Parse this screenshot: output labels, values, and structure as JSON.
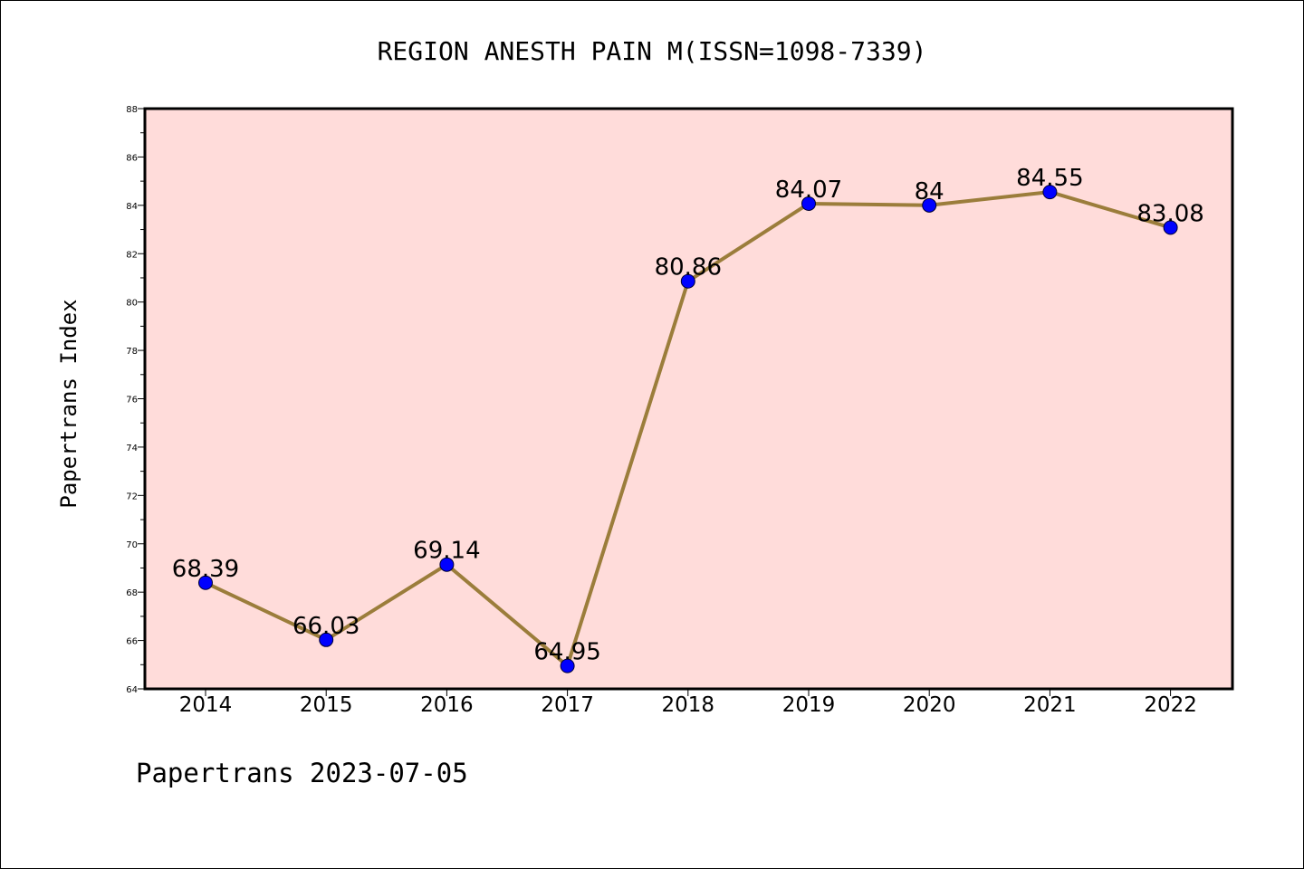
{
  "chart_data": {
    "type": "line",
    "title": "REGION ANESTH PAIN M(ISSN=1098-7339)",
    "ylabel": "Papertrans Index",
    "xlabel": "",
    "categories": [
      "2014",
      "2015",
      "2016",
      "2017",
      "2018",
      "2019",
      "2020",
      "2021",
      "2022"
    ],
    "series": [
      {
        "values": [
          68.39,
          66.03,
          69.14,
          64.95,
          80.86,
          84.07,
          84,
          84.55,
          83.08
        ],
        "labels": [
          "68.39",
          "66.03",
          "69.14",
          "64.95",
          "80.86",
          "84.07",
          "84",
          "84.55",
          "83.08"
        ]
      }
    ],
    "ylim": [
      64,
      88
    ],
    "yticks": [
      "64",
      "66",
      "68",
      "70",
      "72",
      "74",
      "76",
      "78",
      "80",
      "82",
      "84",
      "86",
      "88"
    ],
    "grid": false,
    "legend": "none",
    "colors": {
      "plot_background": "#FFDCDA",
      "line": "#9B7D3B",
      "marker": "#0000FF"
    }
  },
  "footer": "Papertrans 2023-07-05"
}
